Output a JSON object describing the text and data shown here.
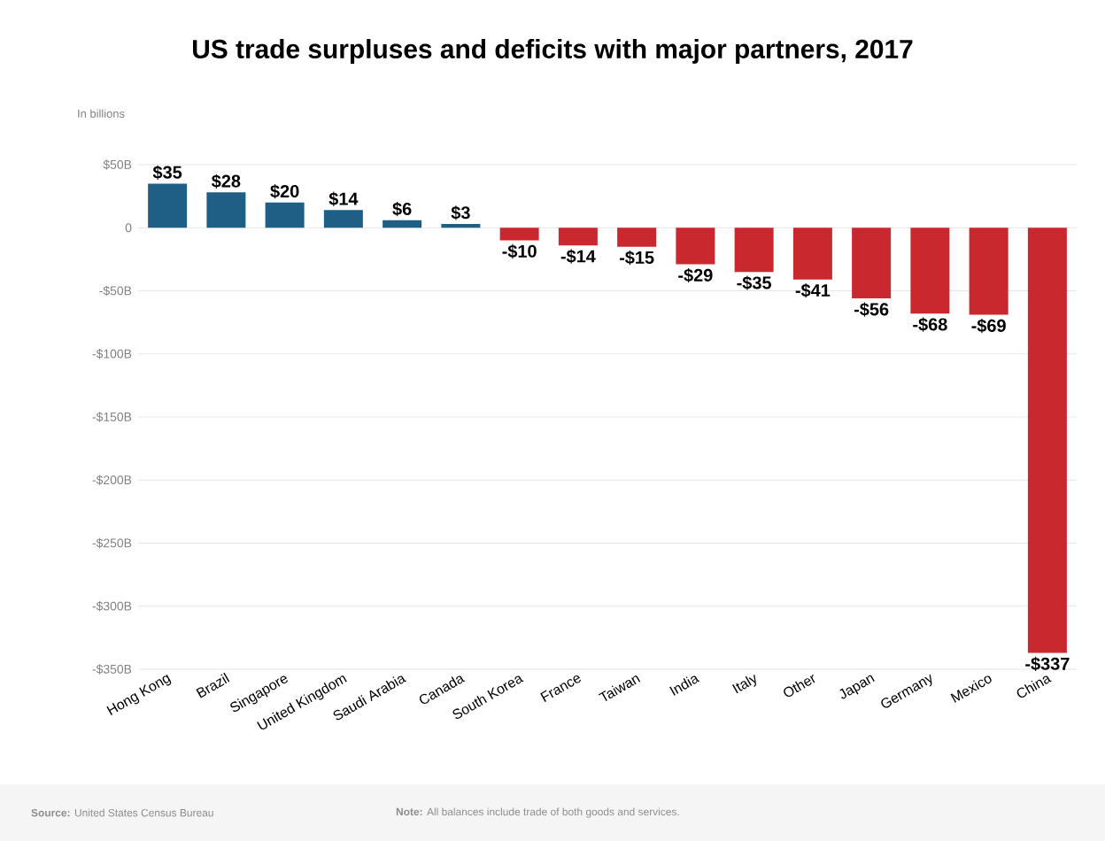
{
  "chart_data": {
    "type": "bar",
    "title": "US trade surpluses and deficits with major partners, 2017",
    "ylabel": "In billions",
    "categories": [
      "Hong Kong",
      "Brazil",
      "Singapore",
      "United Kingdom",
      "Saudi Arabia",
      "Canada",
      "South Korea",
      "France",
      "Taiwan",
      "India",
      "Italy",
      "Other",
      "Japan",
      "Germany",
      "Mexico",
      "China"
    ],
    "values": [
      35,
      28,
      20,
      14,
      6,
      3,
      -10,
      -14,
      -15,
      -29,
      -35,
      -41,
      -56,
      -68,
      -69,
      -337
    ],
    "value_labels": [
      "$35",
      "$28",
      "$20",
      "$14",
      "$6",
      "$3",
      "-$10",
      "-$14",
      "-$15",
      "-$29",
      "-$35",
      "-$41",
      "-$56",
      "-$68",
      "-$69",
      "-$337"
    ],
    "colors": [
      "#1f5f86",
      "#1f5f86",
      "#1f5f86",
      "#1f5f86",
      "#1f5f86",
      "#1f5f86",
      "#c8282e",
      "#c8282e",
      "#c8282e",
      "#c8282e",
      "#c8282e",
      "#c8282e",
      "#c8282e",
      "#c8282e",
      "#c8282e",
      "#c8282e"
    ],
    "ylim": [
      -350,
      50
    ],
    "yticks": [
      {
        "value": 50,
        "label": "$50B"
      },
      0,
      {
        "value": -50,
        "label": "-$50B"
      },
      {
        "value": -100,
        "label": "-$100B"
      },
      {
        "value": -150,
        "label": "-$150B"
      },
      {
        "value": -200,
        "label": "-$200B"
      },
      {
        "value": -250,
        "label": "-$250B"
      },
      {
        "value": -300,
        "label": "-$300B"
      },
      {
        "value": -350,
        "label": "-$350B"
      }
    ],
    "grid": "y",
    "annotations": [
      "**Source:** United States Census Bureau",
      "**Note:** All balances include trade of both goods and services."
    ]
  }
}
